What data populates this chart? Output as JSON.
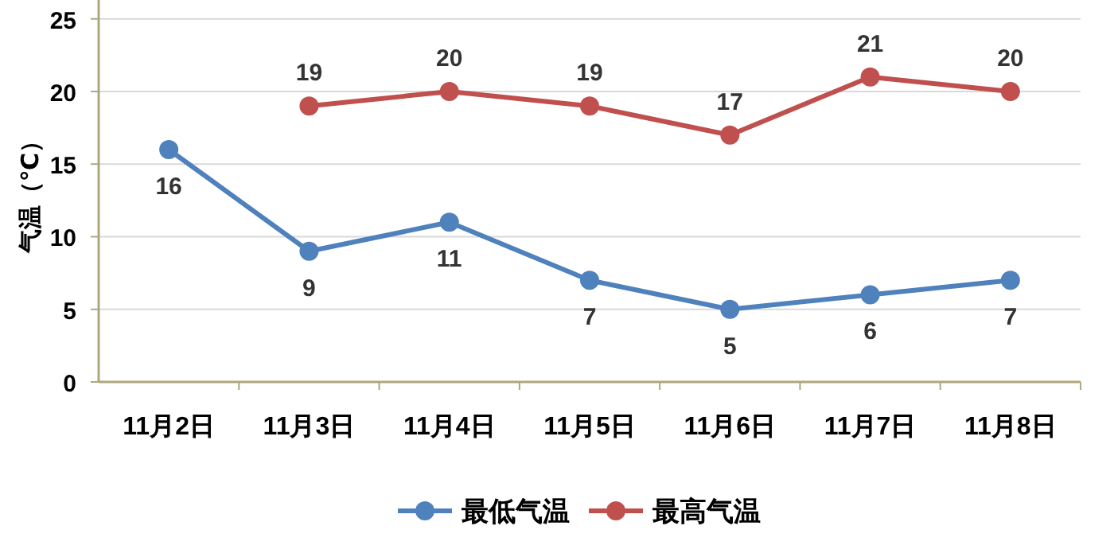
{
  "chart_data": {
    "type": "line",
    "ylabel": "气温（℃）",
    "categories": [
      "11月2日",
      "11月3日",
      "11月4日",
      "11月5日",
      "11月6日",
      "11月7日",
      "11月8日"
    ],
    "series": [
      {
        "name": "最低气温",
        "color": "#4f81bd",
        "values": [
          16,
          9,
          11,
          7,
          5,
          6,
          7
        ]
      },
      {
        "name": "最高气温",
        "color": "#c0504d",
        "values": [
          null,
          19,
          20,
          19,
          17,
          21,
          20
        ]
      }
    ],
    "ylim": [
      0,
      26.3
    ],
    "yticks": [
      0,
      5,
      10,
      15,
      20,
      25
    ],
    "grid": "y",
    "legend": "bottom",
    "marker": "circle",
    "data_labels": true
  }
}
